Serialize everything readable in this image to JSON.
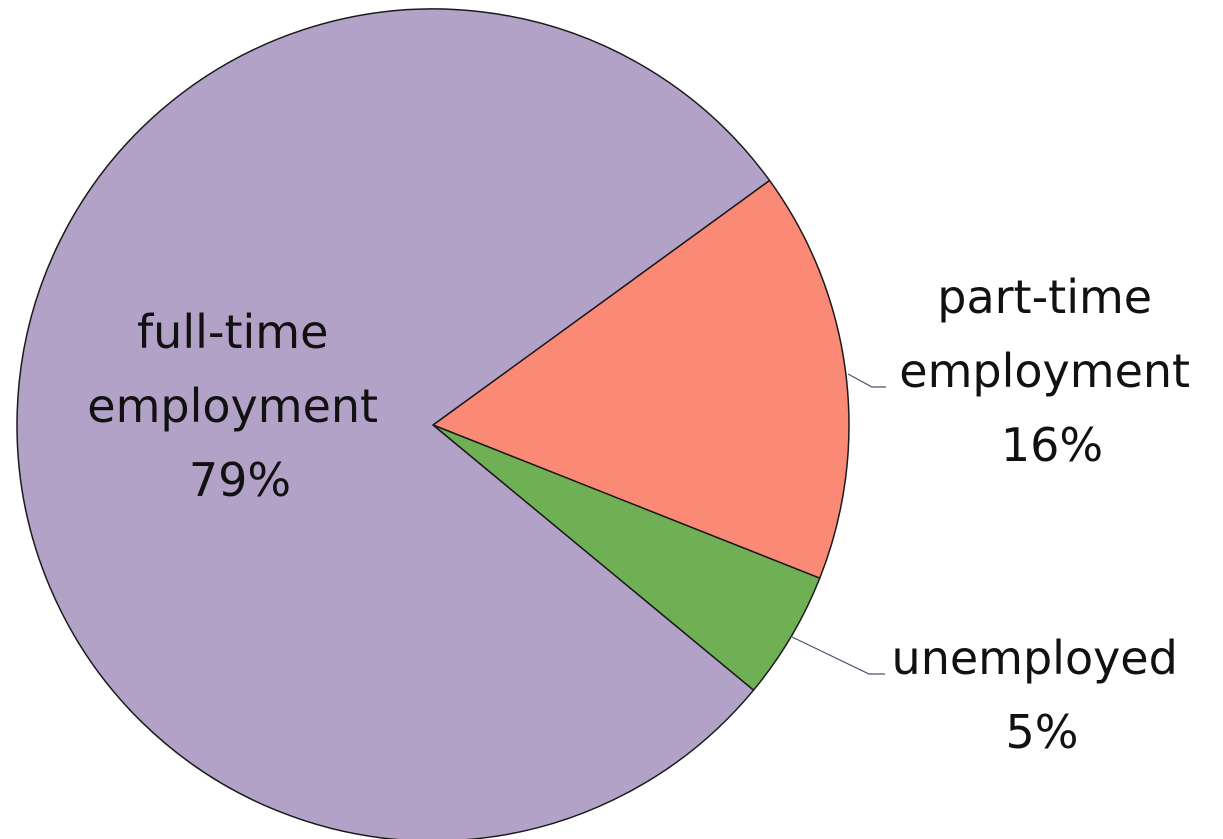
{
  "chart_data": {
    "type": "pie",
    "categories": [
      "full-time employment",
      "part-time employment",
      "unemployed"
    ],
    "values": [
      79,
      16,
      5
    ],
    "data_labels": [
      {
        "name_lines": [
          "full-time",
          "employment"
        ],
        "value": "79%"
      },
      {
        "name_lines": [
          "part-time",
          "employment"
        ],
        "value": "16%"
      },
      {
        "name_lines": [
          "unemployed"
        ],
        "value": "5%"
      }
    ],
    "colors": [
      "#b3a2c8",
      "#fa8a76",
      "#70b054"
    ],
    "legend": "none",
    "title": ""
  }
}
